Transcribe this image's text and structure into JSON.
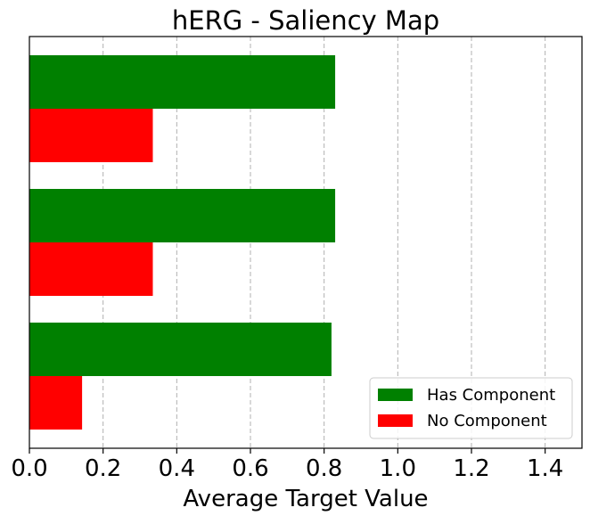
{
  "chart_data": {
    "type": "bar",
    "orientation": "horizontal",
    "title": "hERG - Saliency Map",
    "xlabel": "Average Target Value",
    "ylabel": "",
    "xlim": [
      0,
      1.5
    ],
    "xticks": [
      0.0,
      0.2,
      0.4,
      0.6,
      0.8,
      1.0,
      1.2,
      1.4
    ],
    "xtick_labels": [
      "0.0",
      "0.2",
      "0.4",
      "0.6",
      "0.8",
      "1.0",
      "1.2",
      "1.4"
    ],
    "categories": [
      "",
      "",
      ""
    ],
    "series": [
      {
        "name": "Has Component",
        "color": "#008000",
        "values": [
          0.83,
          0.83,
          0.82
        ]
      },
      {
        "name": "No Component",
        "color": "#ff0000",
        "values": [
          0.335,
          0.335,
          0.143
        ]
      }
    ],
    "grid": {
      "x": true,
      "y": false,
      "style": "dashed"
    },
    "legend_position": "lower-right"
  }
}
